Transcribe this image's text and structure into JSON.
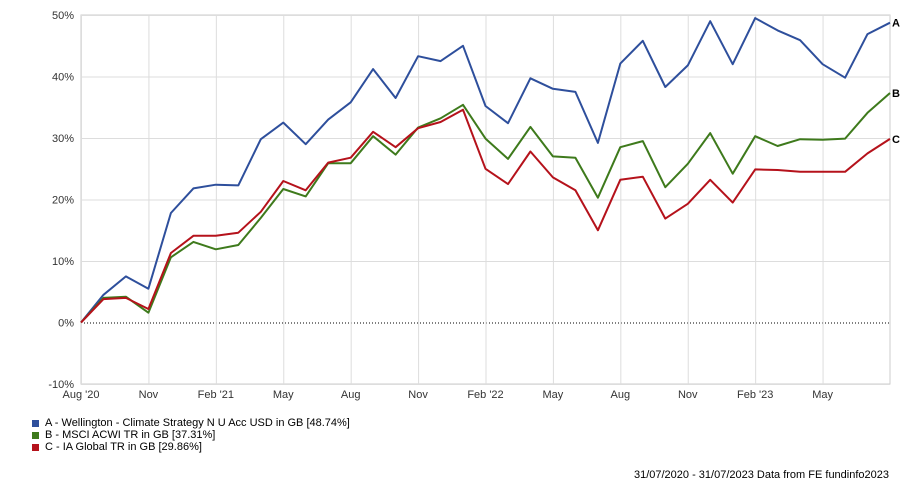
{
  "chart_data": {
    "type": "line",
    "title": "",
    "xlabel": "",
    "ylabel": "",
    "ylim": [
      -10,
      50
    ],
    "y_ticks": [
      -10,
      0,
      10,
      20,
      30,
      40,
      50
    ],
    "y_tick_suffix": "%",
    "grid": "on",
    "zero_line": "dotted",
    "legend_position": "bottom-left",
    "x_tick_labels": [
      "Aug '20",
      "Nov",
      "Feb '21",
      "May",
      "Aug",
      "Nov",
      "Feb '22",
      "May",
      "Aug",
      "Nov",
      "Feb '23",
      "May"
    ],
    "x_tick_index": [
      0,
      3,
      6,
      9,
      12,
      15,
      18,
      21,
      24,
      27,
      30,
      33
    ],
    "x": [
      "2020-07-31",
      "2020-08-31",
      "2020-09-30",
      "2020-10-31",
      "2020-11-30",
      "2020-12-31",
      "2021-01-31",
      "2021-02-28",
      "2021-03-31",
      "2021-04-30",
      "2021-05-31",
      "2021-06-30",
      "2021-07-31",
      "2021-08-31",
      "2021-09-30",
      "2021-10-31",
      "2021-11-30",
      "2021-12-31",
      "2022-01-31",
      "2022-02-28",
      "2022-03-31",
      "2022-04-30",
      "2022-05-31",
      "2022-06-30",
      "2022-07-31",
      "2022-08-31",
      "2022-09-30",
      "2022-10-31",
      "2022-11-30",
      "2022-12-31",
      "2023-01-31",
      "2023-02-28",
      "2023-03-31",
      "2023-04-30",
      "2023-05-31",
      "2023-06-30",
      "2023-07-31"
    ],
    "series": [
      {
        "name": "A - Wellington - Climate Strategy N U Acc USD in GB [48.74%]",
        "end_label": "A",
        "color": "#2e4f9c",
        "values": [
          0,
          4.5,
          7.5,
          5.5,
          17.8,
          21.8,
          22.4,
          22.3,
          29.8,
          32.5,
          29.0,
          33.0,
          35.8,
          41.2,
          36.5,
          43.3,
          42.5,
          45.0,
          35.2,
          32.4,
          39.7,
          38.0,
          37.5,
          29.2,
          42.1,
          45.8,
          38.3,
          41.8,
          49.0,
          42.0,
          49.5,
          47.5,
          45.9,
          42.0,
          39.8,
          46.9,
          48.74
        ]
      },
      {
        "name": "B - MSCI ACWI TR in GB [37.31%]",
        "end_label": "B",
        "color": "#3e7a1c",
        "values": [
          0,
          4.0,
          4.2,
          1.6,
          10.6,
          13.1,
          11.9,
          12.6,
          17.0,
          21.7,
          20.5,
          25.9,
          25.9,
          30.3,
          27.3,
          31.7,
          33.2,
          35.4,
          29.9,
          26.6,
          31.8,
          27.0,
          26.8,
          20.3,
          28.5,
          29.5,
          22.0,
          25.8,
          30.8,
          24.2,
          30.3,
          28.7,
          29.8,
          29.7,
          29.9,
          34.1,
          37.31
        ]
      },
      {
        "name": "C - IA Global TR in GB [29.86%]",
        "end_label": "C",
        "color": "#b5121b",
        "values": [
          0,
          3.8,
          4.0,
          2.2,
          11.3,
          14.1,
          14.1,
          14.6,
          18.0,
          23.0,
          21.5,
          26.0,
          26.8,
          31.0,
          28.5,
          31.6,
          32.6,
          34.6,
          25.0,
          22.5,
          27.8,
          23.6,
          21.5,
          15.0,
          23.2,
          23.7,
          16.9,
          19.3,
          23.2,
          19.5,
          24.9,
          24.8,
          24.5,
          24.5,
          24.5,
          27.5,
          29.86
        ]
      }
    ]
  },
  "footer": {
    "date_range": "31/07/2020 - 31/07/2023",
    "source": "Data from FE fundinfo2023"
  }
}
